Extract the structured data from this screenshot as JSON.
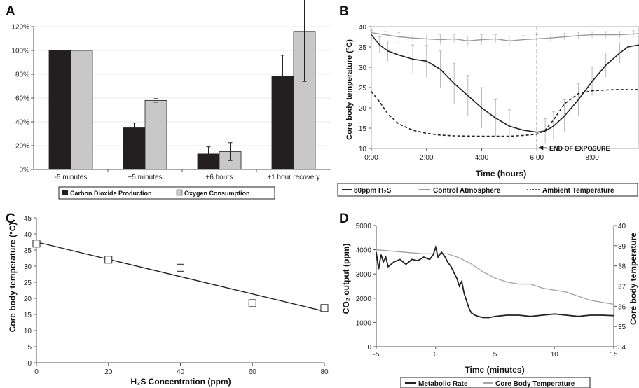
{
  "chart_data": [
    {
      "panel": "A",
      "type": "bar",
      "categories": [
        "-5 minutes",
        "+5 minutes",
        "+6 hours",
        "+1 hour recovery"
      ],
      "ytick_labels": [
        "0%",
        "20%",
        "40%",
        "60%",
        "80%",
        "100%",
        "120%"
      ],
      "ylim": [
        0,
        120
      ],
      "series": [
        {
          "name": "Carbon Dioxide Production",
          "values": [
            100,
            35,
            13,
            78
          ],
          "err": [
            0,
            4,
            6,
            18
          ],
          "color": "#231f20"
        },
        {
          "name": "Oxygen Consumption",
          "values": [
            100,
            58,
            15,
            116
          ],
          "err": [
            0,
            1.5,
            7.5,
            42
          ],
          "color": "#c8c8c8"
        }
      ],
      "legend": "bottom"
    },
    {
      "panel": "B",
      "type": "line",
      "ylabel": "Core body temperature (°C)",
      "xlabel": "Time (hours)",
      "xtick_labels": [
        "0:00",
        "2:00",
        "4:00",
        "6:00",
        "8:00"
      ],
      "ytick_labels": [
        "10",
        "15",
        "20",
        "25",
        "30",
        "35",
        "40"
      ],
      "xlim": [
        0,
        9.7
      ],
      "ylim": [
        10,
        40
      ],
      "annotation": "END OF EXPOSURE",
      "annotation_x": 6,
      "series": [
        {
          "name": "80ppm H₂S",
          "color": "#222222",
          "style": "solid",
          "x": [
            0,
            0.3,
            0.6,
            1,
            1.5,
            2,
            2.5,
            3,
            3.5,
            4,
            4.5,
            5,
            5.5,
            6,
            6.3,
            6.6,
            7,
            7.5,
            8,
            8.5,
            9,
            9.3,
            9.7
          ],
          "y": [
            38,
            35.5,
            34,
            33,
            32,
            31.5,
            29.5,
            26,
            23,
            20,
            17.5,
            15.5,
            14.5,
            14,
            14.3,
            15.5,
            18,
            22,
            26.5,
            30.5,
            33.5,
            35,
            35.5
          ],
          "err": [
            1,
            2,
            2.5,
            3,
            3.5,
            4,
            4.5,
            5,
            5,
            5,
            4.5,
            4,
            3.5,
            3,
            3,
            3.5,
            4,
            4,
            3.5,
            3,
            2.5,
            2,
            2
          ]
        },
        {
          "name": "Control Atmosphere",
          "color": "#9a9a9a",
          "style": "solid",
          "x": [
            0,
            0.5,
            1,
            1.5,
            2,
            2.5,
            3,
            3.5,
            4,
            4.5,
            5,
            5.5,
            6,
            6.5,
            7,
            7.5,
            8,
            8.5,
            9,
            9.5,
            9.7
          ],
          "y": [
            38.5,
            38,
            37.5,
            37.2,
            37,
            36.8,
            37,
            36.5,
            36.8,
            37,
            36.5,
            36.8,
            37,
            37.2,
            37.5,
            37.8,
            38,
            38,
            38,
            38.2,
            38.3
          ],
          "err": [
            0.8,
            0.8,
            1,
            1,
            1.2,
            1.2,
            1,
            1.2,
            1.2,
            1,
            1.2,
            1,
            1,
            1,
            0.8,
            0.8,
            0.8,
            0.8,
            0.8,
            0.8,
            0.8
          ]
        },
        {
          "name": "Ambient Temperature",
          "color": "#222222",
          "style": "dotted",
          "x": [
            0,
            0.3,
            0.6,
            1,
            1.5,
            2,
            2.5,
            3,
            4,
            5,
            5.5,
            6,
            6.3,
            6.6,
            7,
            7.5,
            8,
            8.5,
            9,
            9.7
          ],
          "y": [
            24,
            21.5,
            18.5,
            16,
            14.5,
            13.7,
            13.3,
            13.1,
            13,
            13,
            13.2,
            13.5,
            14.5,
            17,
            21,
            23.5,
            24.2,
            24.4,
            24.5,
            24.5
          ]
        }
      ],
      "legend": "bottom"
    },
    {
      "panel": "C",
      "type": "scatter",
      "ylabel": "Core body temperature (°C)",
      "xlabel": "H₂S Concentration (ppm)",
      "xtick_labels": [
        "0",
        "20",
        "40",
        "60",
        "80"
      ],
      "ytick_labels": [
        "0",
        "5",
        "10",
        "15",
        "20",
        "25",
        "30",
        "35",
        "40",
        "45"
      ],
      "xlim": [
        0,
        80
      ],
      "ylim": [
        0,
        45
      ],
      "points": [
        {
          "x": 0,
          "y": 37
        },
        {
          "x": 20,
          "y": 32
        },
        {
          "x": 40,
          "y": 29.5
        },
        {
          "x": 60,
          "y": 18.5
        },
        {
          "x": 80,
          "y": 17
        }
      ],
      "trendline": {
        "x": [
          0,
          80
        ],
        "y": [
          37.5,
          16
        ]
      }
    },
    {
      "panel": "D",
      "type": "line",
      "ylabel": "CO₂ output (ppm)",
      "ylabel_right": "Core body temperature",
      "xlabel": "Time (minutes)",
      "xtick_labels": [
        "-5",
        "0",
        "5",
        "10",
        "15"
      ],
      "ytick_labels": [
        "0",
        "1000",
        "2000",
        "3000",
        "4000",
        "5000"
      ],
      "ytick_labels_right": [
        "34",
        "35",
        "36",
        "37",
        "38",
        "39",
        "40"
      ],
      "xlim": [
        -5,
        15
      ],
      "ylim": [
        0,
        5000
      ],
      "ylim_right": [
        34,
        40
      ],
      "series": [
        {
          "name": "Metabolic Rate",
          "color": "#222222",
          "axis": "left",
          "x": [
            -5,
            -4.8,
            -4.6,
            -4.4,
            -4.2,
            -4,
            -3.5,
            -3,
            -2.5,
            -2,
            -1.5,
            -1,
            -0.5,
            -0.2,
            0,
            0.2,
            0.5,
            0.8,
            1,
            1.3,
            1.6,
            1.8,
            2,
            2.2,
            2.4,
            2.6,
            2.8,
            3,
            3.3,
            3.6,
            4,
            4.5,
            5,
            6,
            7,
            8,
            9,
            10,
            11,
            12,
            13,
            14,
            15
          ],
          "y": [
            3900,
            3200,
            3800,
            3500,
            3700,
            3300,
            3500,
            3600,
            3400,
            3600,
            3550,
            3700,
            3600,
            3800,
            4100,
            3700,
            3900,
            3700,
            3500,
            3300,
            3000,
            2800,
            2500,
            2700,
            2200,
            1900,
            1600,
            1400,
            1300,
            1250,
            1200,
            1200,
            1250,
            1300,
            1300,
            1250,
            1300,
            1350,
            1300,
            1250,
            1300,
            1300,
            1280
          ]
        },
        {
          "name": "Core Body Temperature",
          "color": "#a6a6a6",
          "axis": "right",
          "x": [
            -5,
            -3,
            -1,
            0,
            1,
            2,
            3,
            4,
            5,
            6,
            7,
            8,
            9,
            10,
            11,
            12,
            13,
            14,
            15
          ],
          "y": [
            38.8,
            38.7,
            38.6,
            38.6,
            38.6,
            38.4,
            38.1,
            37.7,
            37.4,
            37.2,
            37.1,
            37.1,
            36.9,
            36.8,
            36.7,
            36.5,
            36.3,
            36.2,
            36.1
          ]
        }
      ],
      "legend": "bottom"
    }
  ],
  "panels": {
    "A": {
      "letter": "A"
    },
    "B": {
      "letter": "B"
    },
    "C": {
      "letter": "C"
    },
    "D": {
      "letter": "D"
    }
  }
}
